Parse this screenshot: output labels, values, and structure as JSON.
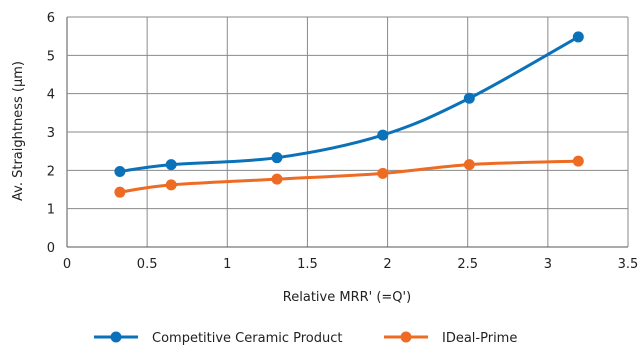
{
  "chart_data": {
    "type": "line",
    "title": "",
    "xlabel": "Relative MRR' (=Q')",
    "ylabel": "Av. Straightness (µm)",
    "xlim": [
      0,
      3.5
    ],
    "ylim": [
      0,
      6
    ],
    "xticks": [
      0,
      0.5,
      1,
      1.5,
      2,
      2.5,
      3,
      3.5
    ],
    "yticks": [
      0,
      1,
      2,
      3,
      4,
      5,
      6
    ],
    "xtick_labels": [
      "0",
      "0.5",
      "1",
      "1.5",
      "2",
      "2.5",
      "3",
      "3.5"
    ],
    "ytick_labels": [
      "0",
      "1",
      "2",
      "3",
      "4",
      "5",
      "6"
    ],
    "grid": true,
    "legend_position": "bottom",
    "series": [
      {
        "name": "Competitive Ceramic Product",
        "color": "#0b72b9",
        "x": [
          0.33,
          0.65,
          1.31,
          1.97,
          2.51,
          3.19
        ],
        "y": [
          1.97,
          2.15,
          2.33,
          2.92,
          3.88,
          5.48
        ]
      },
      {
        "name": "IDeal-Prime",
        "color": "#ee6b24",
        "x": [
          0.33,
          0.65,
          1.31,
          1.97,
          2.51,
          3.19
        ],
        "y": [
          1.43,
          1.62,
          1.77,
          1.92,
          2.15,
          2.24
        ]
      }
    ]
  }
}
